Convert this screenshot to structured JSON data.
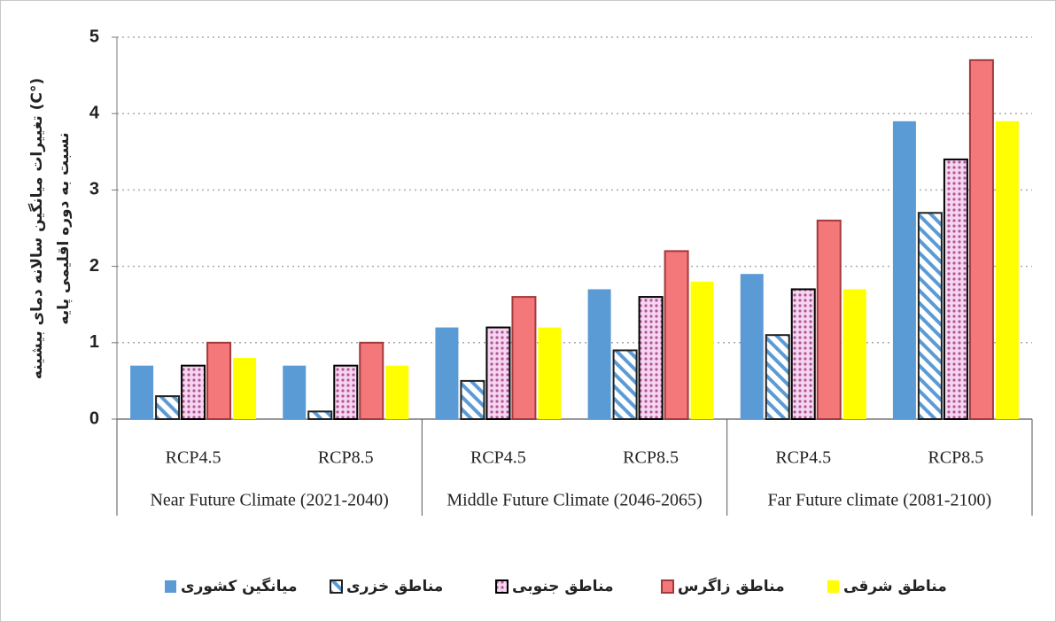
{
  "chart_data": {
    "type": "bar",
    "ylabel": [
      "(°C) تغییرات میانگین سالانه دمای بیشینه",
      "نسبت به دوره اقلیمی پایه"
    ],
    "categories": [
      "RCP4.5",
      "RCP8.5",
      "RCP4.5",
      "RCP8.5",
      "RCP4.5",
      "RCP8.5"
    ],
    "groups": [
      "Near Future Climate  (2021-2040)",
      "Middle  Future Climate (2046-2065)",
      "Far Future climate  (2081-2100)"
    ],
    "series": [
      {
        "name": "میانگین کشوری",
        "color": "#5b9bd5",
        "values": [
          0.7,
          0.7,
          1.2,
          1.7,
          1.9,
          3.9
        ]
      },
      {
        "name": "مناطق خزری",
        "color": "#5b9bd5",
        "pattern": "hatch",
        "edgecolor": "#222222",
        "values": [
          0.3,
          0.1,
          0.5,
          0.9,
          1.1,
          2.7
        ]
      },
      {
        "name": "مناطق جنوبی",
        "color": "#e8a0d8",
        "pattern": "dots",
        "edgecolor": "#000000",
        "values": [
          0.7,
          0.7,
          1.2,
          1.6,
          1.7,
          3.4
        ]
      },
      {
        "name": "مناطق زاگرس",
        "color": "#f4777a",
        "edgecolor": "#a33a3c",
        "values": [
          1.0,
          1.0,
          1.6,
          2.2,
          2.6,
          4.7
        ]
      },
      {
        "name": "مناطق شرقی",
        "color": "#ffff00",
        "values": [
          0.8,
          0.7,
          1.2,
          1.8,
          1.7,
          3.9
        ]
      }
    ],
    "ylim": [
      0,
      5
    ],
    "yticks": [
      0,
      1,
      2,
      3,
      4,
      5
    ],
    "grid": true
  }
}
